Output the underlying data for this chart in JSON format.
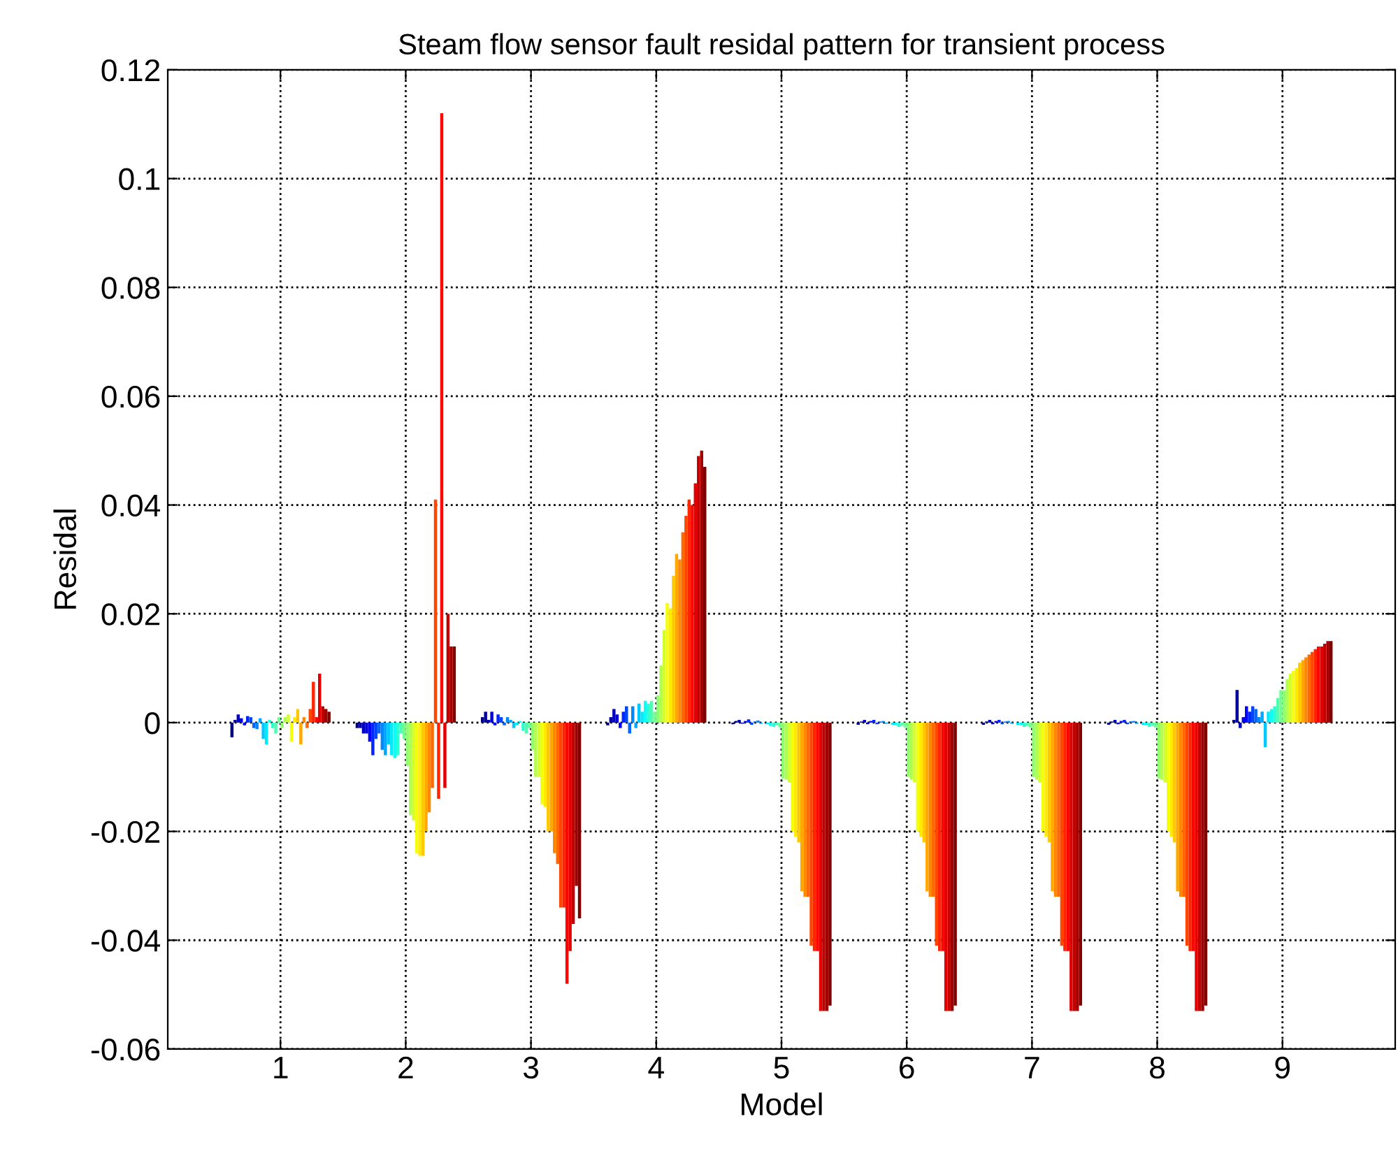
{
  "chart_data": {
    "type": "bar",
    "title": "Steam flow sensor fault residal pattern for transient process",
    "xlabel": "Model",
    "ylabel": "Residal",
    "categories": [
      "1",
      "2",
      "3",
      "4",
      "5",
      "6",
      "7",
      "8",
      "9"
    ],
    "ylim": [
      -0.06,
      0.12
    ],
    "yticks": [
      {
        "value": -0.06,
        "label": "-0.06"
      },
      {
        "value": -0.04,
        "label": "-0.04"
      },
      {
        "value": -0.02,
        "label": "-0.02"
      },
      0,
      0.02,
      0.04,
      0.06,
      0.08,
      0.1,
      0.12
    ],
    "grid": true,
    "line_style": "dotted",
    "series": [
      {
        "color": "#000080",
        "values": [
          -0.0027,
          -0.001,
          0.001,
          -0.0005,
          -0.0003,
          -0.0004,
          -0.0004,
          -0.0004,
          0.0005
        ]
      },
      {
        "color": "#0000a0",
        "values": [
          0.0005,
          -0.001,
          0.002,
          0.001,
          0.0003,
          0.0002,
          0.0002,
          0.0002,
          0.006
        ]
      },
      {
        "color": "#0000c1",
        "values": [
          0.0015,
          -0.002,
          0.0005,
          0.0025,
          0.0005,
          0.0005,
          0.0005,
          0.0005,
          -0.001
        ]
      },
      {
        "color": "#0000e2",
        "values": [
          0.0008,
          -0.002,
          0.002,
          0.0015,
          -0.0002,
          -0.0003,
          -0.0003,
          -0.0003,
          0.001
        ]
      },
      {
        "color": "#0004ff",
        "values": [
          -0.0005,
          -0.0035,
          -0.0005,
          -0.001,
          0.0003,
          0.0003,
          0.0003,
          0.0003,
          0.003
        ]
      },
      {
        "color": "#0025ff",
        "values": [
          0.0012,
          -0.006,
          0.0015,
          0.002,
          0.0006,
          0.0005,
          0.0005,
          0.0005,
          0.002
        ]
      },
      {
        "color": "#0046ff",
        "values": [
          0.001,
          -0.003,
          0.001,
          0.003,
          -0.0004,
          -0.0003,
          -0.0003,
          -0.0003,
          0.003
        ]
      },
      {
        "color": "#0067ff",
        "values": [
          -0.001,
          -0.002,
          -0.0005,
          -0.002,
          0.0002,
          0.0002,
          0.0002,
          0.0002,
          0.0025
        ]
      },
      {
        "color": "#0088ff",
        "values": [
          -0.0012,
          -0.005,
          0.001,
          0.003,
          0.0004,
          0.0003,
          0.0003,
          0.0003,
          0.001
        ]
      },
      {
        "color": "#00a9ff",
        "values": [
          0.0008,
          -0.006,
          0.0005,
          -0.001,
          -0.0002,
          -0.0002,
          -0.0002,
          -0.0002,
          0.002
        ]
      },
      {
        "color": "#00c9ff",
        "values": [
          -0.003,
          -0.004,
          -0.001,
          0.0035,
          null,
          null,
          null,
          null,
          -0.0045
        ]
      },
      {
        "color": "#00eaff",
        "values": [
          -0.004,
          -0.006,
          -0.0005,
          0.002,
          -0.0003,
          -0.0004,
          -0.0004,
          -0.0004,
          0.002
        ]
      },
      {
        "color": "#0cfff3",
        "values": [
          0.0005,
          -0.0065,
          0.0003,
          0.004,
          -0.0006,
          -0.0005,
          -0.0005,
          -0.0005,
          0.0025
        ]
      },
      {
        "color": "#2dffd2",
        "values": [
          -0.001,
          -0.006,
          -0.0015,
          0.0035,
          -0.0008,
          -0.0008,
          -0.0008,
          -0.0008,
          0.003
        ]
      },
      {
        "color": "#4effb1",
        "values": [
          -0.002,
          -0.002,
          -0.002,
          0.004,
          -0.0005,
          -0.0006,
          -0.0006,
          -0.0006,
          0.0045
        ]
      },
      {
        "color": "#6fff90",
        "values": [
          0.001,
          -0.003,
          -0.001,
          0.002,
          -0.0009,
          -0.0009,
          -0.0009,
          -0.0009,
          0.006
        ]
      },
      {
        "color": "#90ff6f",
        "values": [
          -0.001,
          -0.008,
          -0.005,
          0.005,
          -0.0103,
          -0.01,
          -0.01,
          -0.0103,
          0.006
        ]
      },
      {
        "color": "#b1ff4e",
        "values": [
          0.001,
          -0.017,
          -0.01,
          0.0105,
          -0.0105,
          -0.0105,
          -0.0105,
          -0.0105,
          0.008
        ]
      },
      {
        "color": "#d2ff2d",
        "values": [
          0.0015,
          -0.018,
          -0.01,
          0.017,
          -0.011,
          -0.011,
          -0.011,
          -0.011,
          0.009
        ]
      },
      {
        "color": "#f3ff0c",
        "values": [
          -0.0035,
          -0.024,
          -0.015,
          0.022,
          -0.02,
          -0.02,
          -0.02,
          -0.02,
          0.0095
        ]
      },
      {
        "color": "#ffea00",
        "values": [
          0.001,
          -0.0245,
          -0.0155,
          0.021,
          -0.021,
          -0.021,
          -0.021,
          -0.021,
          0.01
        ]
      },
      {
        "color": "#ffc900",
        "values": [
          0.0025,
          -0.0245,
          -0.02,
          0.027,
          -0.022,
          -0.022,
          -0.022,
          -0.022,
          0.011
        ]
      },
      {
        "color": "#ffa900",
        "values": [
          -0.004,
          -0.02,
          -0.02,
          0.031,
          -0.031,
          -0.031,
          -0.031,
          -0.031,
          0.0115
        ]
      },
      {
        "color": "#ff8800",
        "values": [
          0.001,
          -0.0165,
          -0.024,
          0.03,
          -0.032,
          -0.032,
          -0.032,
          -0.032,
          0.012
        ]
      },
      {
        "color": "#ff6700",
        "values": [
          -0.001,
          -0.012,
          -0.026,
          0.035,
          -0.032,
          -0.032,
          -0.032,
          -0.032,
          0.0125
        ]
      },
      {
        "color": "#ff4600",
        "values": [
          0.0025,
          0.041,
          -0.034,
          0.038,
          -0.041,
          -0.041,
          -0.041,
          -0.041,
          0.013
        ]
      },
      {
        "color": "#ff2500",
        "values": [
          0.0075,
          -0.014,
          -0.034,
          0.041,
          -0.042,
          -0.042,
          -0.042,
          -0.042,
          0.0135
        ]
      },
      {
        "color": "#ff0400",
        "values": [
          0.001,
          0.112,
          -0.048,
          0.04,
          -0.042,
          -0.042,
          -0.042,
          -0.042,
          0.014
        ]
      },
      {
        "color": "#e20000",
        "values": [
          0.009,
          -0.012,
          -0.042,
          0.044,
          -0.053,
          -0.053,
          -0.053,
          -0.053,
          0.014
        ]
      },
      {
        "color": "#c10000",
        "values": [
          0.003,
          0.02,
          -0.037,
          0.049,
          -0.053,
          -0.053,
          -0.053,
          -0.053,
          0.0145
        ]
      },
      {
        "color": "#a00000",
        "values": [
          0.0025,
          0.014,
          -0.03,
          0.05,
          -0.053,
          -0.053,
          -0.053,
          -0.053,
          0.015
        ]
      },
      {
        "color": "#800000",
        "values": [
          0.002,
          0.014,
          -0.036,
          0.047,
          -0.052,
          -0.052,
          -0.052,
          -0.052,
          0.015
        ]
      }
    ]
  }
}
